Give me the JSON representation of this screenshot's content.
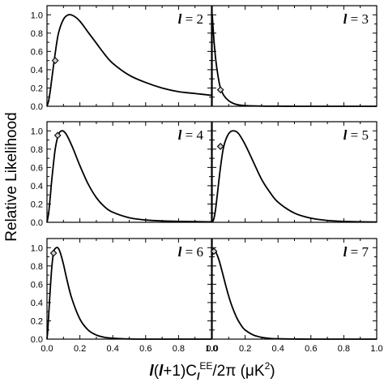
{
  "chart_data": {
    "type": "line",
    "ylabel": "Relative Likelihood",
    "xlabel": {
      "parts": [
        "l",
        "(",
        "l",
        "+1)C",
        "l",
        "EE",
        "/2π (μK",
        "2",
        ")"
      ]
    },
    "xlim": [
      0.0,
      1.0
    ],
    "ylim": [
      0.0,
      1.1
    ],
    "x_ticks": [
      0.0,
      0.2,
      0.4,
      0.6,
      0.8,
      1.0
    ],
    "x_tick_labels": [
      "0.0",
      "0.2",
      "0.4",
      "0.6",
      "0.8",
      "1.0"
    ],
    "y_ticks": [
      0.0,
      0.2,
      0.4,
      0.6,
      0.8,
      1.0
    ],
    "y_tick_labels": [
      "0.0",
      "0.2",
      "0.4",
      "0.6",
      "0.8",
      "1.0"
    ],
    "grid": false,
    "line_color": "#000000",
    "marker": "diamond",
    "panels": [
      {
        "label_var": "l",
        "label_rest": " = 2",
        "x": [
          0.0,
          0.01,
          0.02,
          0.03,
          0.05,
          0.07,
          0.1,
          0.13,
          0.16,
          0.2,
          0.25,
          0.3,
          0.35,
          0.4,
          0.5,
          0.6,
          0.7,
          0.8,
          0.9,
          1.0
        ],
        "y": [
          0.0,
          0.06,
          0.17,
          0.31,
          0.58,
          0.8,
          0.95,
          1.0,
          0.99,
          0.93,
          0.81,
          0.69,
          0.57,
          0.47,
          0.34,
          0.26,
          0.2,
          0.16,
          0.14,
          0.12
        ],
        "marker_point": [
          0.05,
          0.5
        ]
      },
      {
        "label_var": "l",
        "label_rest": " = 3",
        "x": [
          0.0,
          0.01,
          0.02,
          0.03,
          0.04,
          0.05,
          0.07,
          0.1,
          0.13,
          0.16,
          0.2,
          0.3,
          0.4,
          0.5,
          0.6,
          0.8,
          1.0
        ],
        "y": [
          1.0,
          0.73,
          0.53,
          0.39,
          0.28,
          0.2,
          0.12,
          0.06,
          0.03,
          0.015,
          0.008,
          0.002,
          0.001,
          0.0,
          0.0,
          0.0,
          0.0
        ],
        "marker_point": [
          0.05,
          0.18
        ]
      },
      {
        "label_var": "l",
        "label_rest": " = 4",
        "x": [
          0.0,
          0.01,
          0.02,
          0.03,
          0.05,
          0.07,
          0.09,
          0.11,
          0.13,
          0.16,
          0.2,
          0.25,
          0.3,
          0.35,
          0.4,
          0.5,
          0.6,
          0.7,
          0.8,
          0.9,
          1.0
        ],
        "y": [
          0.0,
          0.1,
          0.28,
          0.48,
          0.8,
          0.96,
          1.0,
          0.98,
          0.92,
          0.8,
          0.62,
          0.42,
          0.27,
          0.17,
          0.11,
          0.05,
          0.025,
          0.015,
          0.01,
          0.007,
          0.005
        ],
        "marker_point": [
          0.065,
          0.95
        ]
      },
      {
        "label_var": "l",
        "label_rest": " = 5",
        "x": [
          0.0,
          0.01,
          0.02,
          0.03,
          0.05,
          0.07,
          0.1,
          0.13,
          0.16,
          0.2,
          0.25,
          0.3,
          0.35,
          0.4,
          0.5,
          0.6,
          0.7,
          0.8,
          0.9,
          1.0
        ],
        "y": [
          0.0,
          0.04,
          0.14,
          0.29,
          0.6,
          0.83,
          0.97,
          1.0,
          0.97,
          0.85,
          0.66,
          0.47,
          0.33,
          0.22,
          0.1,
          0.045,
          0.02,
          0.01,
          0.005,
          0.003
        ],
        "marker_point": [
          0.05,
          0.83
        ]
      },
      {
        "label_var": "l",
        "label_rest": " = 6",
        "x": [
          0.0,
          0.005,
          0.01,
          0.02,
          0.03,
          0.04,
          0.05,
          0.065,
          0.08,
          0.1,
          0.12,
          0.15,
          0.2,
          0.25,
          0.3,
          0.35,
          0.4,
          0.5,
          0.6,
          0.8,
          1.0
        ],
        "y": [
          0.0,
          0.1,
          0.25,
          0.55,
          0.8,
          0.95,
          0.99,
          1.0,
          0.95,
          0.82,
          0.66,
          0.45,
          0.22,
          0.1,
          0.045,
          0.02,
          0.01,
          0.002,
          0.0,
          0.0,
          0.0
        ],
        "marker_point": [
          0.04,
          0.94
        ]
      },
      {
        "label_var": "l",
        "label_rest": " = 7",
        "x": [
          0.0,
          0.005,
          0.01,
          0.02,
          0.04,
          0.06,
          0.08,
          0.1,
          0.12,
          0.15,
          0.18,
          0.2,
          0.25,
          0.3,
          0.35,
          0.4,
          0.5,
          0.6,
          0.8,
          1.0
        ],
        "y": [
          0.92,
          0.96,
          0.98,
          0.96,
          0.87,
          0.74,
          0.6,
          0.47,
          0.36,
          0.23,
          0.14,
          0.1,
          0.045,
          0.02,
          0.008,
          0.004,
          0.001,
          0.0,
          0.0,
          0.0
        ],
        "marker_point": [
          0.01,
          0.96
        ]
      }
    ]
  }
}
